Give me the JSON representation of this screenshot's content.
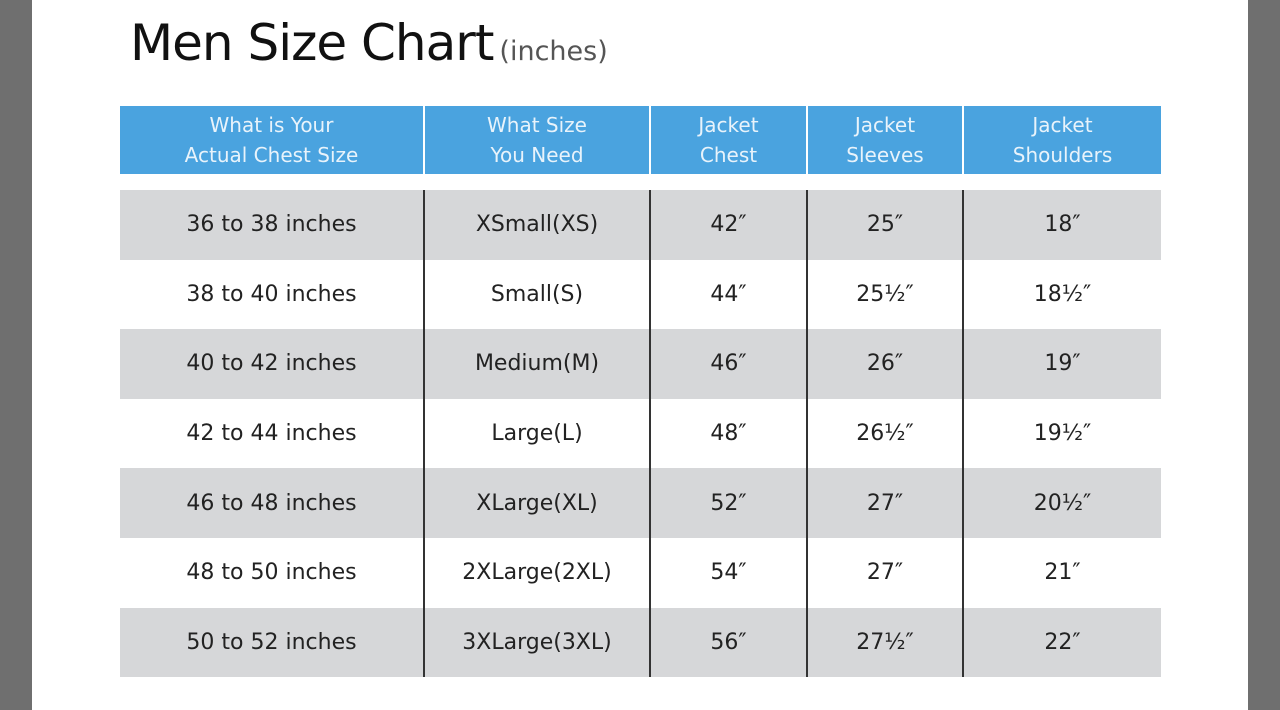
{
  "title": "Men Size Chart",
  "unit": "(inches)",
  "colors": {
    "header": "#4aa3df",
    "stripe": "#d6d7d9",
    "backdrop": "#6f6f6f"
  },
  "columns": [
    "What is Your\nActual Chest Size",
    "What Size\nYou Need",
    "Jacket\nChest",
    "Jacket\nSleeves",
    "Jacket\nShoulders"
  ],
  "rows": [
    [
      "36 to 38 inches",
      "XSmall(XS)",
      "42″",
      "25″",
      "18″"
    ],
    [
      "38 to 40 inches",
      "Small(S)",
      "44″",
      "25½″",
      "18½″"
    ],
    [
      "40 to 42 inches",
      "Medium(M)",
      "46″",
      "26″",
      "19″"
    ],
    [
      "42 to 44 inches",
      "Large(L)",
      "48″",
      "26½″",
      "19½″"
    ],
    [
      "46 to 48 inches",
      "XLarge(XL)",
      "52″",
      "27″",
      "20½″"
    ],
    [
      "48 to 50 inches",
      "2XLarge(2XL)",
      "54″",
      "27″",
      "21″"
    ],
    [
      "50 to 52 inches",
      "3XLarge(3XL)",
      "56″",
      "27½″",
      "22″"
    ]
  ]
}
